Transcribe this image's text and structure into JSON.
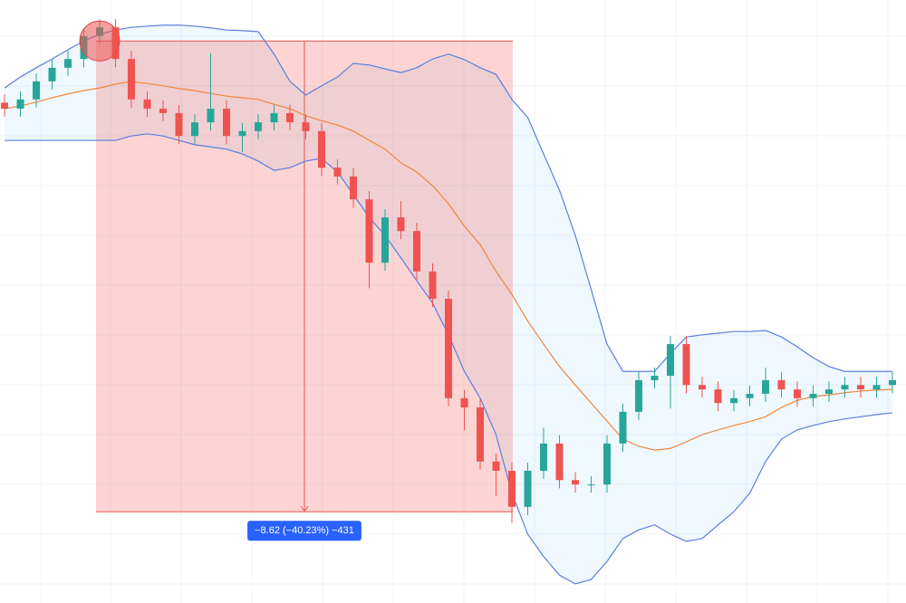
{
  "chart_data": {
    "type": "candlestick",
    "ylim": [
      11.14,
      22.18
    ],
    "up_color": "#26a69a",
    "down_color": "#ef5350",
    "open": [
      20.3,
      20.19,
      20.36,
      20.69,
      20.94,
      21.1,
      21.52,
      21.68,
      21.1,
      20.36,
      20.19,
      20.11,
      19.69,
      19.94,
      20.19,
      19.69,
      19.78,
      19.94,
      20.11,
      19.94,
      19.78,
      19.11,
      18.95,
      18.53,
      17.37,
      18.2,
      17.95,
      17.21,
      16.71,
      14.89,
      14.72,
      13.73,
      13.56,
      12.9,
      13.56,
      14.06,
      13.39,
      13.31,
      13.31,
      14.06,
      14.64,
      15.22,
      15.3,
      15.88,
      15.13,
      15.05,
      14.8,
      14.89,
      14.97,
      15.22,
      15.05,
      14.89,
      14.97,
      15.05,
      15.13,
      15.05,
      15.13
    ],
    "high": [
      20.45,
      20.51,
      20.84,
      21.09,
      21.25,
      21.67,
      21.83,
      21.83,
      21.25,
      20.51,
      20.34,
      20.26,
      20.09,
      21.2,
      20.34,
      19.93,
      20.09,
      20.26,
      20.26,
      20.09,
      19.93,
      19.26,
      19.1,
      18.68,
      18.35,
      18.5,
      18.1,
      17.36,
      16.86,
      15.04,
      14.87,
      13.88,
      13.71,
      13.71,
      14.35,
      14.21,
      13.54,
      13.46,
      14.21,
      14.79,
      15.37,
      15.45,
      16.03,
      16.03,
      15.28,
      15.2,
      15.04,
      15.12,
      15.45,
      15.37,
      15.2,
      15.12,
      15.2,
      15.28,
      15.28,
      15.28,
      15.37
    ],
    "low": [
      20.04,
      20.04,
      20.21,
      20.54,
      20.79,
      20.95,
      21.37,
      20.95,
      20.21,
      20.04,
      19.96,
      19.54,
      19.54,
      19.79,
      19.54,
      19.4,
      19.63,
      19.79,
      19.79,
      19.63,
      18.96,
      18.8,
      18.38,
      16.9,
      17.22,
      17.8,
      17.06,
      16.56,
      14.74,
      14.3,
      13.58,
      13.1,
      12.6,
      12.75,
      13.41,
      13.24,
      13.16,
      13.16,
      13.16,
      13.91,
      14.49,
      15.07,
      14.7,
      14.98,
      14.9,
      14.65,
      14.65,
      14.74,
      14.82,
      14.9,
      14.74,
      14.74,
      14.82,
      14.9,
      14.9,
      14.9,
      14.98
    ],
    "close": [
      20.19,
      20.36,
      20.69,
      20.94,
      21.1,
      21.52,
      21.68,
      21.1,
      20.36,
      20.19,
      20.11,
      19.69,
      19.94,
      20.19,
      19.69,
      19.78,
      19.94,
      20.11,
      19.94,
      19.78,
      19.11,
      18.95,
      18.53,
      17.37,
      18.2,
      17.95,
      17.21,
      16.71,
      14.89,
      14.72,
      13.73,
      13.56,
      12.9,
      13.56,
      14.06,
      13.39,
      13.31,
      13.31,
      14.06,
      14.64,
      15.22,
      15.3,
      15.88,
      15.13,
      15.05,
      14.8,
      14.89,
      14.97,
      15.22,
      15.05,
      14.89,
      14.97,
      15.05,
      15.13,
      15.05,
      15.13,
      15.22
    ],
    "band_color": "#5b7fe0",
    "middle_color": "#f0873a",
    "upper_band": [
      20.57,
      20.77,
      20.94,
      21.1,
      21.27,
      21.43,
      21.55,
      21.63,
      21.68,
      21.7,
      21.72,
      21.72,
      21.7,
      21.67,
      21.63,
      21.62,
      21.6,
      21.19,
      20.69,
      20.44,
      20.61,
      20.77,
      21.02,
      20.99,
      20.92,
      20.85,
      20.94,
      21.1,
      21.19,
      21.09,
      20.94,
      20.82,
      20.36,
      20.03,
      19.36,
      18.7,
      17.87,
      16.88,
      15.88,
      15.38,
      15.38,
      15.38,
      15.71,
      16.01,
      16.05,
      16.08,
      16.11,
      16.11,
      16.13,
      16.01,
      15.83,
      15.63,
      15.47,
      15.38,
      15.38,
      15.38,
      15.38
    ],
    "middle_band": [
      20.19,
      20.24,
      20.31,
      20.39,
      20.46,
      20.52,
      20.57,
      20.64,
      20.69,
      20.65,
      20.61,
      20.56,
      20.52,
      20.47,
      20.42,
      20.39,
      20.36,
      20.27,
      20.19,
      20.06,
      19.97,
      19.89,
      19.78,
      19.61,
      19.45,
      19.2,
      19.03,
      18.78,
      18.45,
      18.04,
      17.7,
      17.21,
      16.79,
      16.3,
      15.88,
      15.47,
      15.13,
      14.8,
      14.47,
      14.14,
      14.01,
      13.94,
      13.97,
      14.09,
      14.22,
      14.31,
      14.39,
      14.46,
      14.55,
      14.72,
      14.85,
      14.92,
      14.95,
      14.99,
      15.02,
      15.04,
      15.05
    ],
    "lower_band": [
      19.61,
      19.61,
      19.61,
      19.61,
      19.61,
      19.61,
      19.61,
      19.61,
      19.69,
      19.73,
      19.69,
      19.61,
      19.53,
      19.49,
      19.45,
      19.36,
      19.23,
      19.06,
      19.11,
      19.23,
      19.28,
      19.03,
      18.62,
      18.2,
      17.87,
      17.46,
      17.04,
      16.63,
      16.05,
      15.38,
      14.89,
      14.22,
      13.15,
      12.4,
      11.99,
      11.65,
      11.49,
      11.57,
      11.9,
      12.32,
      12.48,
      12.57,
      12.4,
      12.27,
      12.32,
      12.57,
      12.81,
      13.15,
      13.73,
      14.14,
      14.31,
      14.39,
      14.46,
      14.51,
      14.55,
      14.59,
      14.62
    ],
    "measure": {
      "label": "−8.62 (−40.23%) −431",
      "from": 21.43,
      "to": 12.81,
      "color": "#ef5350"
    }
  }
}
